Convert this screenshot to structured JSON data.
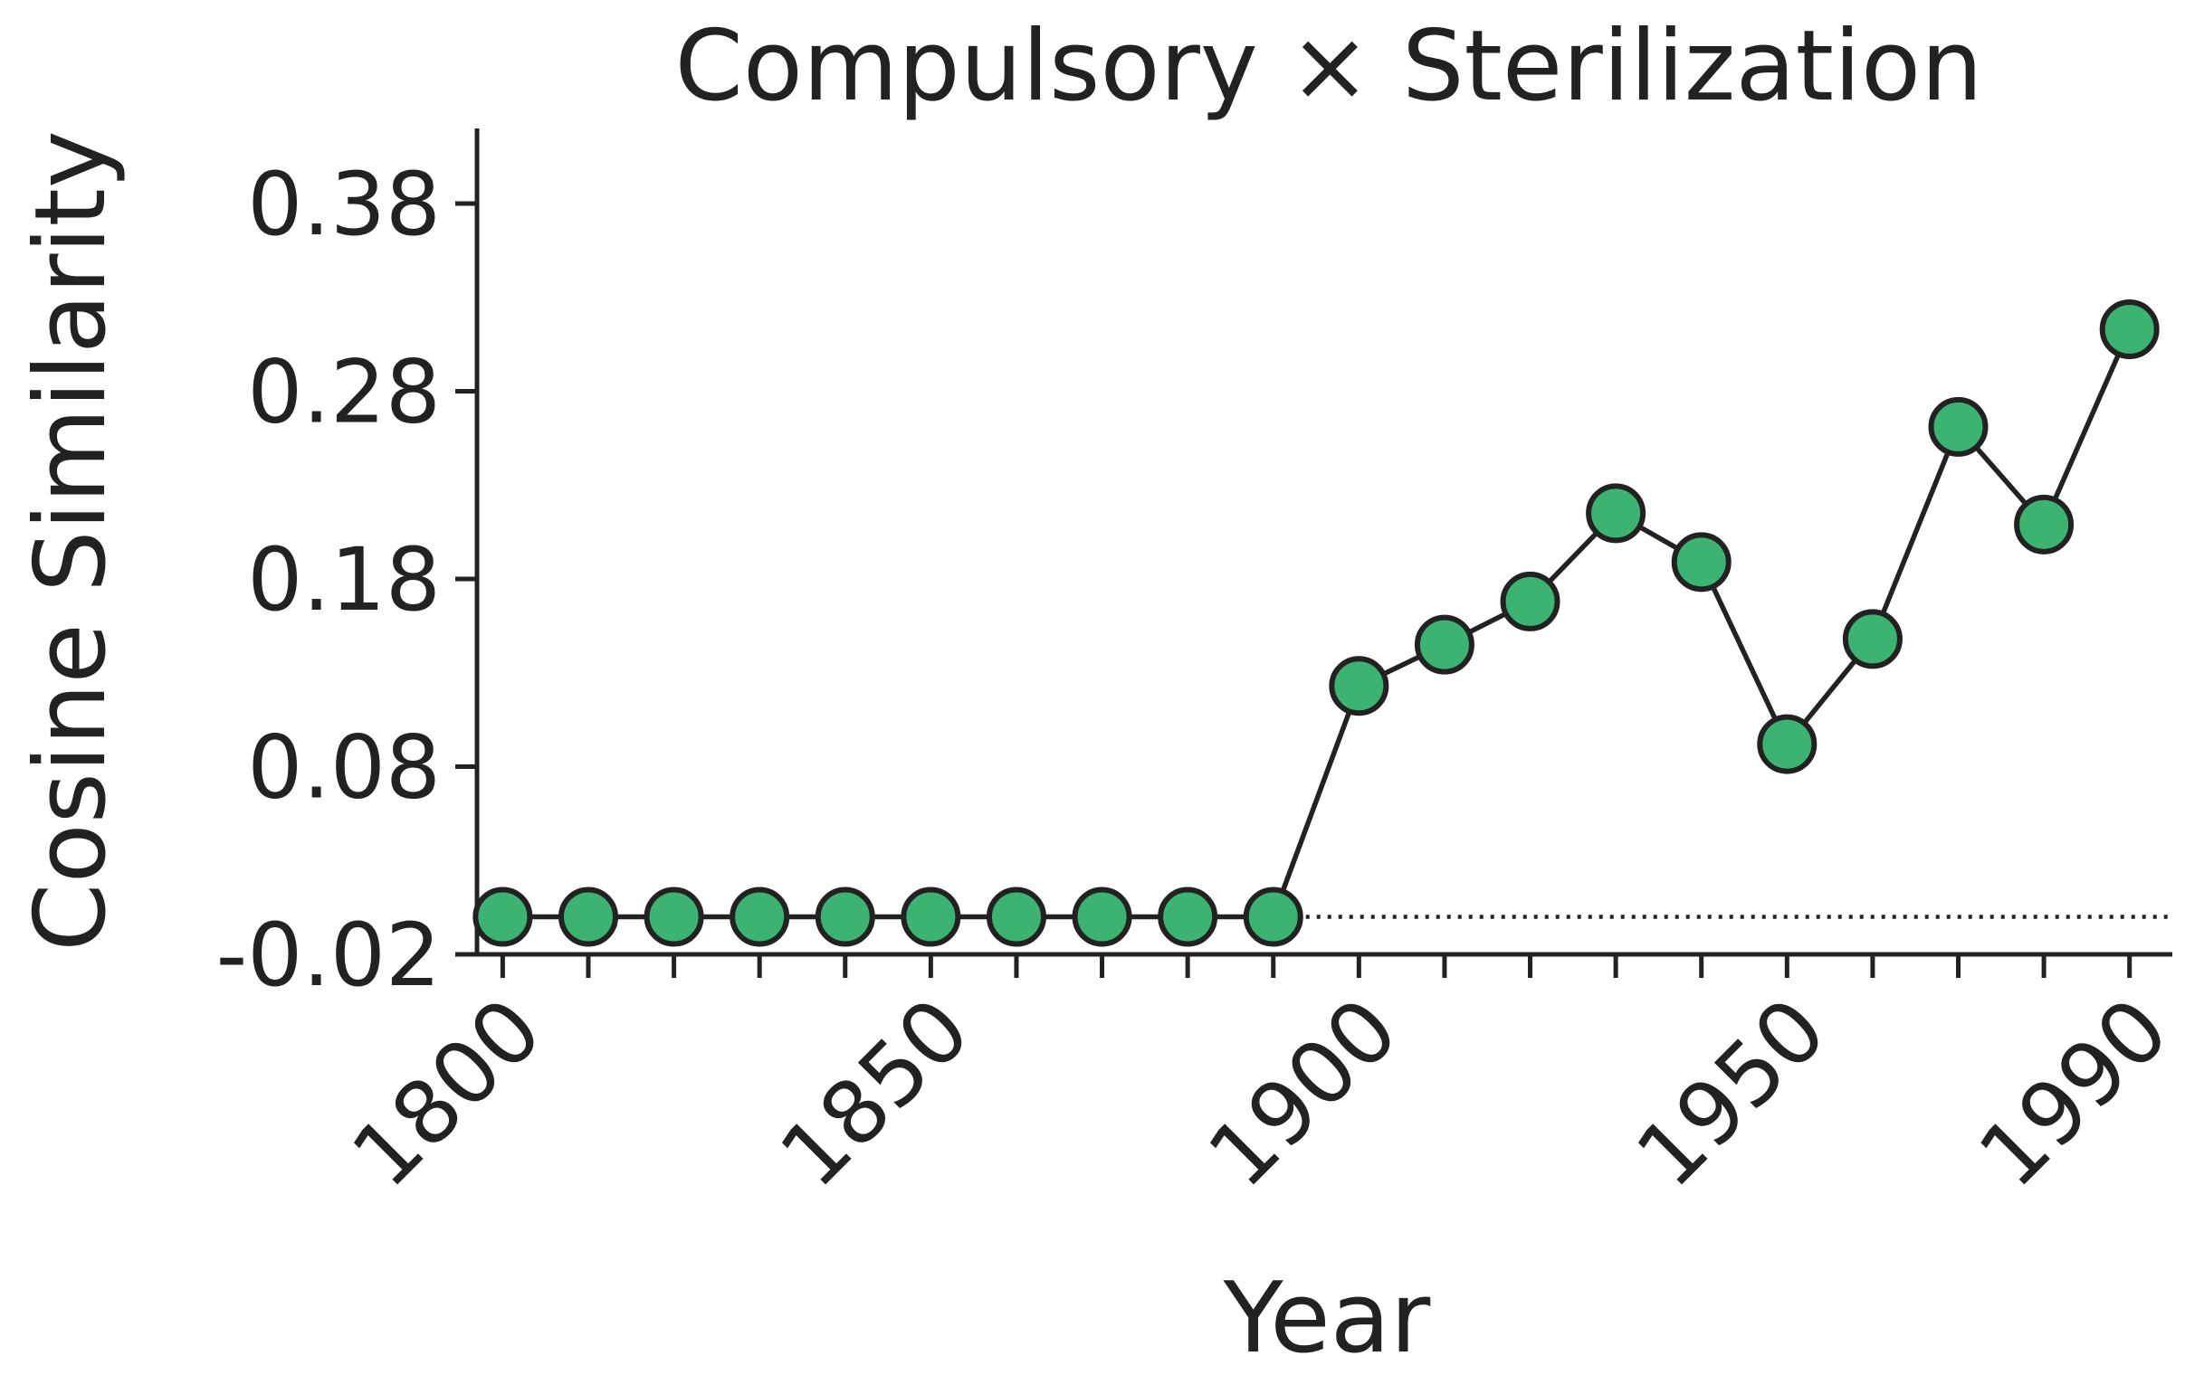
{
  "chart_data": {
    "type": "line",
    "title": "Compulsory × Sterilization",
    "xlabel": "Year",
    "ylabel": "Cosine Similarity",
    "x": [
      1800,
      1810,
      1820,
      1830,
      1840,
      1850,
      1860,
      1870,
      1880,
      1890,
      1900,
      1910,
      1920,
      1930,
      1940,
      1950,
      1960,
      1970,
      1980,
      1990
    ],
    "series": [
      {
        "values": [
          0.0,
          0.0,
          0.0,
          0.0,
          0.0,
          0.0,
          0.0,
          0.0,
          0.0,
          0.0,
          0.123,
          0.145,
          0.168,
          0.215,
          0.189,
          0.092,
          0.148,
          0.261,
          0.209,
          0.313
        ]
      }
    ],
    "x_ticks": [
      "1800",
      "1850",
      "1900",
      "1950",
      "1990"
    ],
    "x_tick_values": [
      1800,
      1850,
      1900,
      1950,
      1990
    ],
    "y_ticks": [
      "0.38",
      "0.28",
      "0.18",
      "0.08",
      "-0.02"
    ],
    "y_tick_values": [
      0.38,
      0.28,
      0.18,
      0.08,
      -0.02
    ],
    "xlim": [
      1797,
      1995
    ],
    "ylim": [
      -0.02,
      0.42
    ],
    "reference_line": {
      "y": 0.0,
      "style": "dotted",
      "from_x": 1890
    },
    "grid": false,
    "legend": "none",
    "colors": {
      "marker_fill": "#3cb371",
      "marker_edge": "#222222",
      "line": "#222222",
      "text": "#222222"
    }
  }
}
